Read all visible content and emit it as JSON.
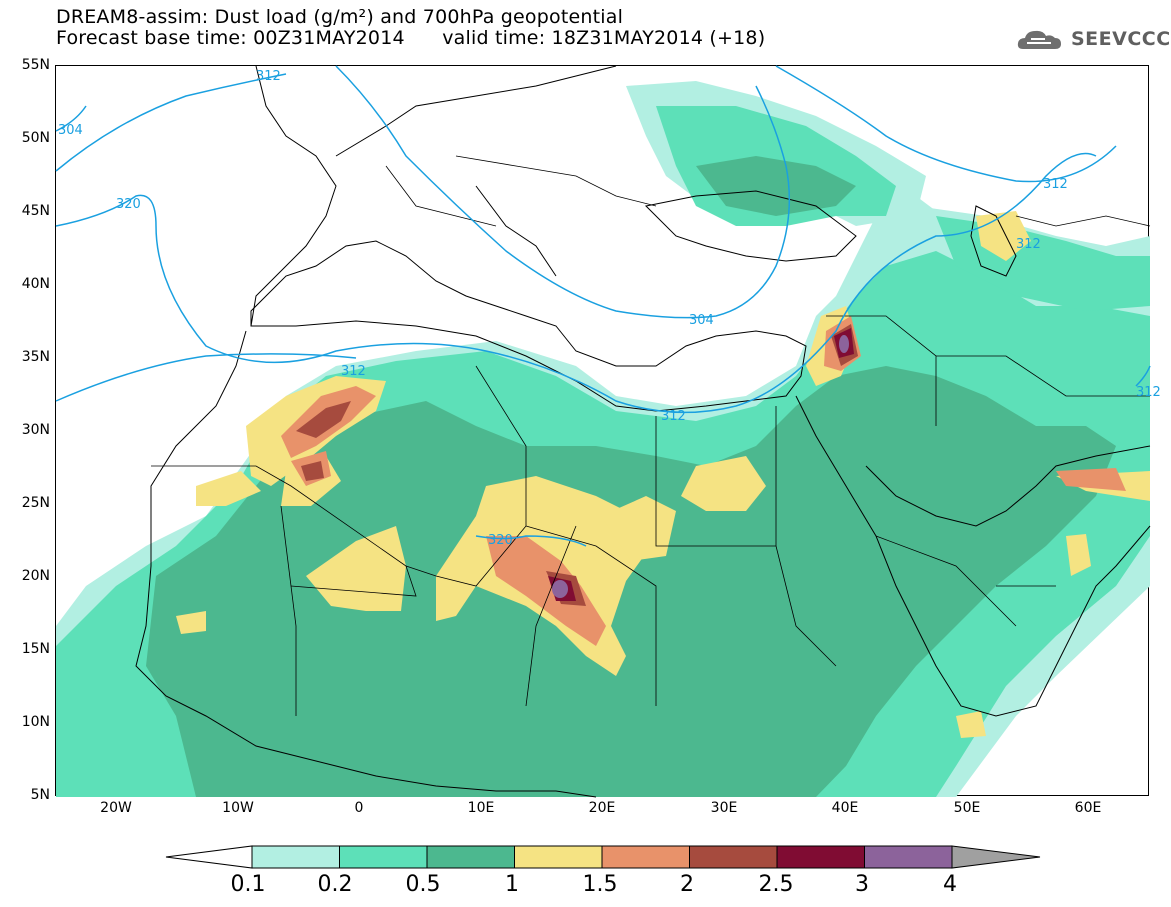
{
  "title": {
    "line1": "DREAM8-assim: Dust load (g/m²) and 700hPa geopotential",
    "line2": "Forecast base time: 00Z31MAY2014      valid time: 18Z31MAY2014 (+18)"
  },
  "logo": {
    "text": "SEEVCCC",
    "icon": "cloud-icon"
  },
  "map": {
    "lat_labels": [
      "55N",
      "50N",
      "45N",
      "40N",
      "35N",
      "30N",
      "25N",
      "20N",
      "15N",
      "10N",
      "5N"
    ],
    "lon_labels": [
      "20W",
      "10W",
      "0",
      "10E",
      "20E",
      "30E",
      "40E",
      "50E",
      "60E"
    ],
    "extent": {
      "lon_min": -25,
      "lon_max": 65,
      "lat_min": 5,
      "lat_max": 55
    },
    "contour_labels": [
      "312",
      "320",
      "312",
      "312",
      "304",
      "312",
      "312",
      "320",
      "304",
      "312"
    ]
  },
  "legend": {
    "labels": [
      "0.1",
      "0.2",
      "0.5",
      "1",
      "1.5",
      "2",
      "2.5",
      "3",
      "4"
    ],
    "colors": [
      "#b2efe2",
      "#5de0b8",
      "#4cb88f",
      "#f5e383",
      "#e8926a",
      "#a64b3e",
      "#800c33",
      "#8c639b"
    ],
    "under_color": "#ffffff",
    "over_color": "#a0a0a0"
  }
}
